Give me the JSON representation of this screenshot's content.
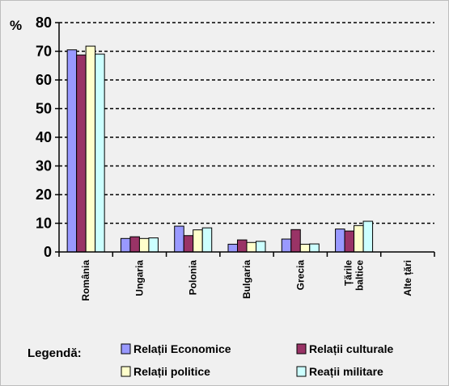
{
  "chart_data": {
    "type": "bar",
    "title": "",
    "ylabel": "%",
    "xlabel": "",
    "ylim": [
      0,
      80
    ],
    "yticks": [
      0,
      10,
      20,
      30,
      40,
      50,
      60,
      70,
      80
    ],
    "grid": true,
    "legend_position": "bottom",
    "legend_title": "Legendă:",
    "categories": [
      [
        "România"
      ],
      [
        "Ungaria"
      ],
      [
        "Polonia"
      ],
      [
        "Bulgaria"
      ],
      [
        "Grecia"
      ],
      [
        "Țările",
        "baltice"
      ],
      [
        "Alte țări"
      ]
    ],
    "series": [
      {
        "name": "Relații Economice",
        "color": "#9999ff",
        "values": [
          70.5,
          4.7,
          9.0,
          2.7,
          4.5,
          8.0,
          0
        ]
      },
      {
        "name": "Relații culturale",
        "color": "#993366",
        "values": [
          68.7,
          5.3,
          5.7,
          4.2,
          7.8,
          7.3,
          0
        ]
      },
      {
        "name": "Relații politice",
        "color": "#ffffcc",
        "values": [
          71.8,
          4.7,
          7.7,
          3.3,
          2.7,
          9.2,
          0
        ]
      },
      {
        "name": "Reații militare",
        "color": "#ccffff",
        "values": [
          69.0,
          4.9,
          8.4,
          3.7,
          2.8,
          10.7,
          0
        ]
      }
    ]
  }
}
